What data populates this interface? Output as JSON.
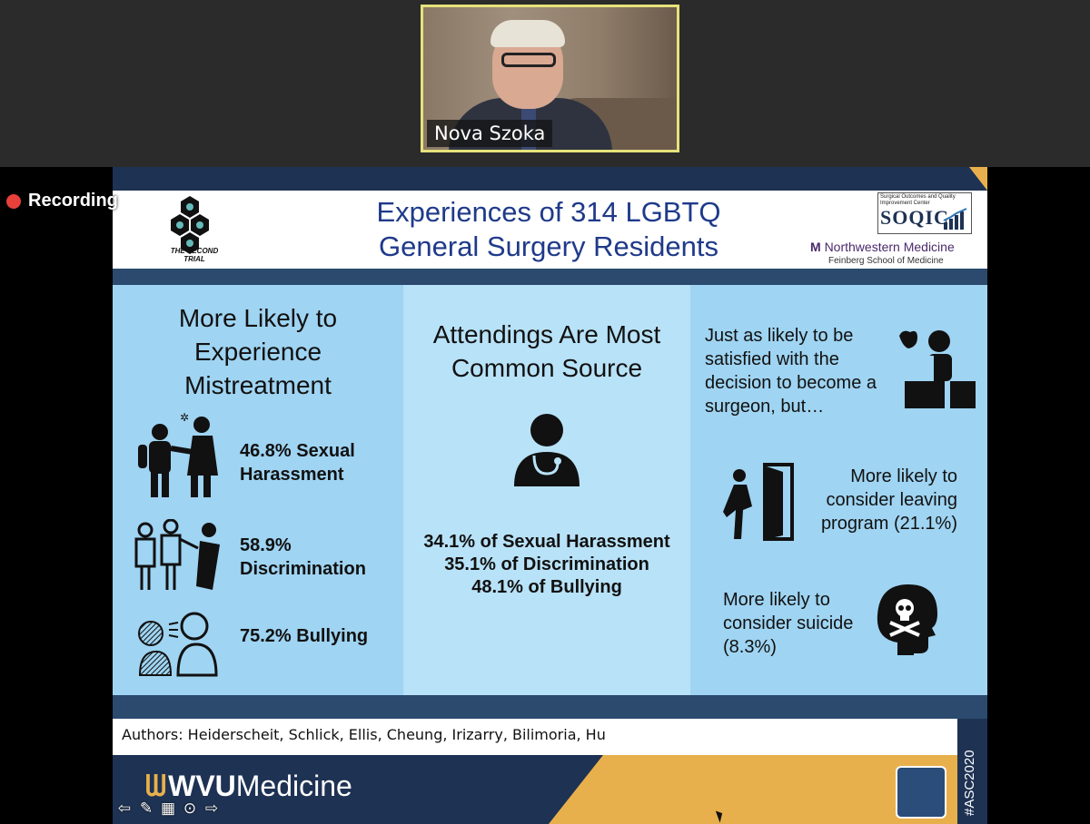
{
  "participant": {
    "name": "Nova Szoka"
  },
  "recording": {
    "label": "Recording"
  },
  "slide": {
    "title_line1": "Experiences of 314 LGBTQ",
    "title_line2": "General Surgery Residents",
    "logo_left_text": "THE SECOND TRIAL",
    "soqic_small": "Surgical Outcomes and Quality Improvement Center",
    "soqic_name": "SOQIC",
    "soqic_sub": "Northwestern Medicine",
    "nm_brand": "Northwestern Medicine",
    "nm_school": "Feinberg School of Medicine",
    "panel1": {
      "title": "More Likely to Experience Mistreatment",
      "stat1": "46.8% Sexual Harassment",
      "stat2": "58.9% Discrimination",
      "stat3": "75.2% Bullying"
    },
    "panel2": {
      "title": "Attendings Are Most Common Source",
      "stat1": "34.1% of Sexual Harassment",
      "stat2": "35.1% of Discrimination",
      "stat3": "48.1% of Bullying"
    },
    "panel3": {
      "text1": "Just as likely to be satisfied with the decision to become a surgeon, but…",
      "text2": "More likely to consider leaving program (21.1%)",
      "text3": "More likely to consider suicide (8.3%)"
    },
    "authors": "Authors: Heiderscheit, Schlick, Ellis, Cheung, Irizarry, Bilimoria, Hu",
    "footer_brand_bold": "WVU",
    "footer_brand": "Medicine",
    "conference_tag": "#ASC2020"
  },
  "icons": [
    "harassment-icon",
    "discrimination-icon",
    "bullying-icon",
    "doctor-icon",
    "surgeon-icon",
    "door-exit-icon",
    "skull-head-icon"
  ]
}
